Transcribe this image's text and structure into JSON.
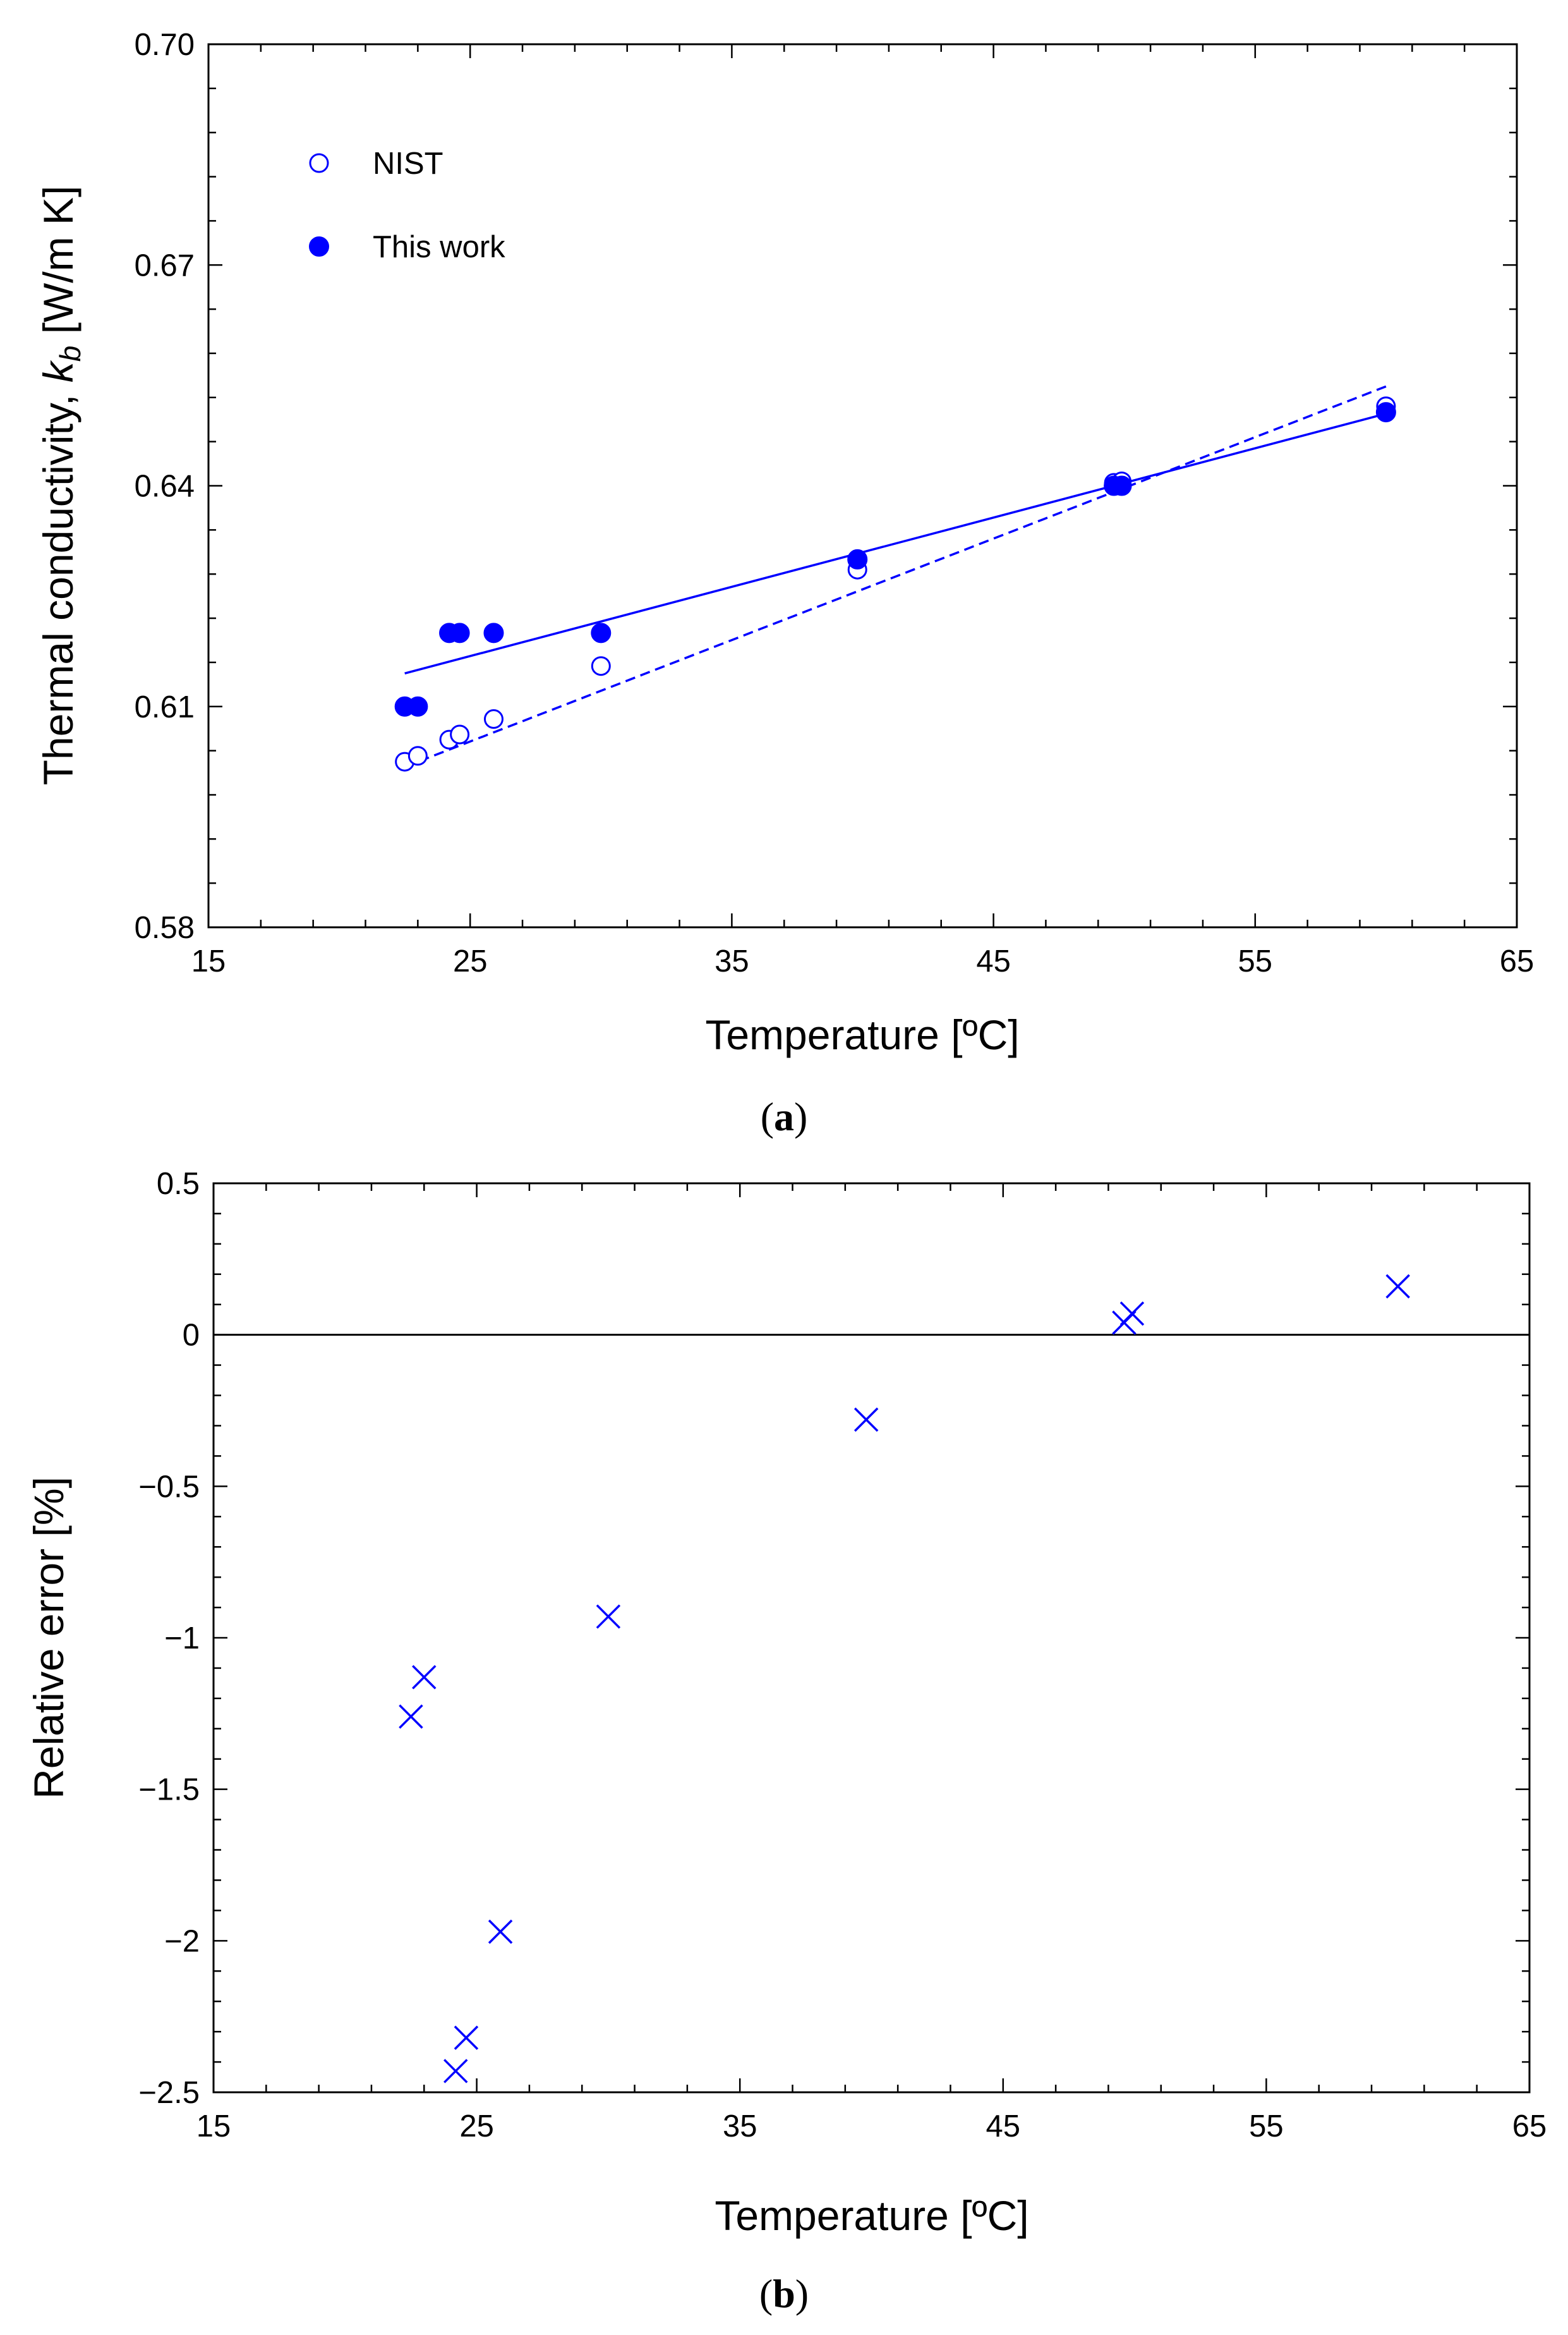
{
  "chart_data": [
    {
      "type": "scatter",
      "panel_label": "a",
      "xlabel": "Temperature [ºC]",
      "ylabel_prefix": "Thermal conductivity, ",
      "ylabel_var": "k",
      "ylabel_sub": "b",
      "ylabel_suffix": " [W/m K]",
      "xlim": [
        15,
        65
      ],
      "ylim": [
        0.58,
        0.7
      ],
      "xticks": [
        15,
        25,
        35,
        45,
        55,
        65
      ],
      "xtick_labels": [
        "15",
        "25",
        "35",
        "45",
        "55",
        "65"
      ],
      "yticks": [
        0.58,
        0.61,
        0.64,
        0.67,
        0.7
      ],
      "ytick_labels": [
        "0.58",
        "0.61",
        "0.64",
        "0.67",
        "0.70"
      ],
      "legend": {
        "position": "top-left",
        "entries": [
          "NIST",
          "This work"
        ]
      },
      "color": "#0000ff",
      "series": [
        {
          "name": "NIST",
          "marker": "open-circle",
          "points": [
            [
              22.5,
              0.6025
            ],
            [
              23.0,
              0.6033
            ],
            [
              24.2,
              0.6055
            ],
            [
              24.6,
              0.6062
            ],
            [
              25.9,
              0.6083
            ],
            [
              30.0,
              0.6155
            ],
            [
              39.8,
              0.6286
            ],
            [
              49.6,
              0.6404
            ],
            [
              49.9,
              0.6406
            ],
            [
              60.0,
              0.6508
            ]
          ]
        },
        {
          "name": "This work",
          "marker": "filled-circle",
          "points": [
            [
              22.5,
              0.61
            ],
            [
              23.0,
              0.61
            ],
            [
              24.2,
              0.62
            ],
            [
              24.6,
              0.62
            ],
            [
              25.9,
              0.62
            ],
            [
              30.0,
              0.62
            ],
            [
              39.8,
              0.63
            ],
            [
              49.6,
              0.64
            ],
            [
              49.9,
              0.64
            ],
            [
              60.0,
              0.65
            ]
          ]
        }
      ],
      "fit_lines": [
        {
          "name": "This work fit",
          "style": "solid",
          "points": [
            [
              22.5,
              0.6145
            ],
            [
              60.0,
              0.6498
            ]
          ]
        },
        {
          "name": "NIST fit",
          "style": "dashed",
          "points": [
            [
              22.5,
              0.6018
            ],
            [
              60.0,
              0.6535
            ]
          ]
        }
      ]
    },
    {
      "type": "scatter",
      "panel_label": "b",
      "xlabel": "Temperature [ºC]",
      "ylabel": "Relative error [%]",
      "xlim": [
        15,
        65
      ],
      "ylim": [
        -2.5,
        0.5
      ],
      "xticks": [
        15,
        25,
        35,
        45,
        55,
        65
      ],
      "xtick_labels": [
        "15",
        "25",
        "35",
        "45",
        "55",
        "65"
      ],
      "yticks": [
        -2.5,
        -2,
        -1.5,
        -1,
        -0.5,
        0,
        0.5
      ],
      "ytick_labels": [
        "−2.5",
        "−2",
        "−1.5",
        "−1",
        "−0.5",
        "0",
        "0.5"
      ],
      "reference_line": 0,
      "color": "#0000ff",
      "series": [
        {
          "name": "Relative error",
          "marker": "x",
          "points": [
            [
              22.5,
              -1.26
            ],
            [
              23.0,
              -1.13
            ],
            [
              24.2,
              -2.43
            ],
            [
              24.6,
              -2.32
            ],
            [
              25.9,
              -1.97
            ],
            [
              30.0,
              -0.93
            ],
            [
              39.8,
              -0.28
            ],
            [
              49.6,
              0.04
            ],
            [
              49.9,
              0.07
            ],
            [
              60.0,
              0.16
            ]
          ]
        }
      ]
    }
  ]
}
